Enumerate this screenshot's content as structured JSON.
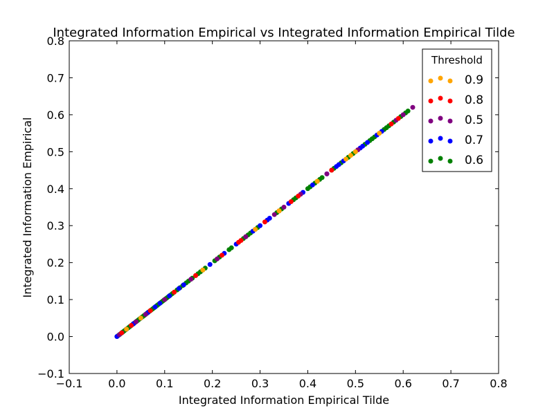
{
  "chart_data": {
    "type": "scatter",
    "title": "Integrated Information Empirical vs Integrated Information Empirical Tilde",
    "xlabel": "Integrated Information Empirical Tilde",
    "ylabel": "Integrated Information Empirical",
    "xlim": [
      -0.1,
      0.8
    ],
    "ylim": [
      -0.1,
      0.8
    ],
    "x_ticks": [
      "−0.1",
      "0.0",
      "0.1",
      "0.2",
      "0.3",
      "0.4",
      "0.5",
      "0.6",
      "0.7",
      "0.8"
    ],
    "y_ticks": [
      "−0.1",
      "0.0",
      "0.1",
      "0.2",
      "0.3",
      "0.4",
      "0.5",
      "0.6",
      "0.7",
      "0.8"
    ],
    "grid": false,
    "legend": {
      "title": "Threshold",
      "placement": "top-right"
    },
    "series": [
      {
        "name": "0.9",
        "color": "#ffa500",
        "points": [
          [
            0.48,
            0.48
          ],
          [
            0.49,
            0.49
          ],
          [
            0.5,
            0.5
          ],
          [
            0.55,
            0.55
          ],
          [
            0.34,
            0.34
          ],
          [
            0.02,
            0.02
          ],
          [
            0.05,
            0.05
          ],
          [
            0.29,
            0.29
          ],
          [
            0.42,
            0.42
          ],
          [
            0.18,
            0.18
          ]
        ]
      },
      {
        "name": "0.8",
        "color": "#ff0000",
        "points": [
          [
            0.59,
            0.59
          ],
          [
            0.575,
            0.575
          ],
          [
            0.38,
            0.38
          ],
          [
            0.22,
            0.22
          ],
          [
            0.26,
            0.26
          ],
          [
            0.34,
            0.34
          ],
          [
            0.12,
            0.12
          ],
          [
            0.31,
            0.31
          ],
          [
            0.45,
            0.45
          ],
          [
            0.07,
            0.07
          ],
          [
            0.03,
            0.03
          ],
          [
            0.01,
            0.01
          ],
          [
            0.165,
            0.165
          ],
          [
            0.255,
            0.255
          ],
          [
            0.365,
            0.365
          ]
        ]
      },
      {
        "name": "0.5",
        "color": "#800080",
        "points": [
          [
            0.62,
            0.62
          ],
          [
            0.6,
            0.6
          ],
          [
            0.585,
            0.585
          ],
          [
            0.35,
            0.35
          ],
          [
            0.385,
            0.385
          ],
          [
            0.21,
            0.21
          ],
          [
            0.155,
            0.155
          ],
          [
            0.1,
            0.1
          ],
          [
            0.06,
            0.06
          ],
          [
            0.04,
            0.04
          ],
          [
            0.02,
            0.02
          ],
          [
            0.005,
            0.005
          ],
          [
            0.44,
            0.44
          ],
          [
            0.27,
            0.27
          ],
          [
            0.505,
            0.505
          ],
          [
            0.33,
            0.33
          ]
        ]
      },
      {
        "name": "0.7",
        "color": "#0000ff",
        "points": [
          [
            0.475,
            0.475
          ],
          [
            0.465,
            0.465
          ],
          [
            0.46,
            0.46
          ],
          [
            0.44,
            0.44
          ],
          [
            0.41,
            0.41
          ],
          [
            0.39,
            0.39
          ],
          [
            0.36,
            0.36
          ],
          [
            0.32,
            0.32
          ],
          [
            0.3,
            0.3
          ],
          [
            0.25,
            0.25
          ],
          [
            0.195,
            0.195
          ],
          [
            0.14,
            0.14
          ],
          [
            0.13,
            0.13
          ],
          [
            0.11,
            0.11
          ],
          [
            0.09,
            0.09
          ],
          [
            0.08,
            0.08
          ],
          [
            0.065,
            0.065
          ],
          [
            0.05,
            0.05
          ],
          [
            0.035,
            0.035
          ],
          [
            0.02,
            0.02
          ],
          [
            0.01,
            0.01
          ],
          [
            0.0,
            0.0
          ],
          [
            0.51,
            0.51
          ],
          [
            0.515,
            0.515
          ],
          [
            0.545,
            0.545
          ],
          [
            0.555,
            0.555
          ],
          [
            0.525,
            0.525
          ],
          [
            0.315,
            0.315
          ],
          [
            0.285,
            0.285
          ],
          [
            0.225,
            0.225
          ],
          [
            0.035,
            0.035
          ]
        ]
      },
      {
        "name": "0.6",
        "color": "#008000",
        "points": [
          [
            0.0,
            0.0
          ],
          [
            0.003,
            0.003
          ],
          [
            0.006,
            0.006
          ],
          [
            0.009,
            0.009
          ],
          [
            0.012,
            0.012
          ],
          [
            0.015,
            0.015
          ],
          [
            0.018,
            0.018
          ],
          [
            0.021,
            0.021
          ],
          [
            0.024,
            0.024
          ],
          [
            0.027,
            0.027
          ],
          [
            0.03,
            0.03
          ],
          [
            0.033,
            0.033
          ],
          [
            0.036,
            0.036
          ],
          [
            0.039,
            0.039
          ],
          [
            0.042,
            0.042
          ],
          [
            0.045,
            0.045
          ],
          [
            0.048,
            0.048
          ],
          [
            0.051,
            0.051
          ],
          [
            0.054,
            0.054
          ],
          [
            0.057,
            0.057
          ],
          [
            0.06,
            0.06
          ],
          [
            0.063,
            0.063
          ],
          [
            0.066,
            0.066
          ],
          [
            0.069,
            0.069
          ],
          [
            0.072,
            0.072
          ],
          [
            0.075,
            0.075
          ],
          [
            0.078,
            0.078
          ],
          [
            0.081,
            0.081
          ],
          [
            0.084,
            0.084
          ],
          [
            0.087,
            0.087
          ],
          [
            0.09,
            0.09
          ],
          [
            0.093,
            0.093
          ],
          [
            0.096,
            0.096
          ],
          [
            0.099,
            0.099
          ],
          [
            0.102,
            0.102
          ],
          [
            0.105,
            0.105
          ],
          [
            0.108,
            0.108
          ],
          [
            0.112,
            0.112
          ],
          [
            0.116,
            0.116
          ],
          [
            0.12,
            0.12
          ],
          [
            0.126,
            0.126
          ],
          [
            0.132,
            0.132
          ],
          [
            0.138,
            0.138
          ],
          [
            0.145,
            0.145
          ],
          [
            0.15,
            0.15
          ],
          [
            0.158,
            0.158
          ],
          [
            0.165,
            0.165
          ],
          [
            0.17,
            0.17
          ],
          [
            0.175,
            0.175
          ],
          [
            0.18,
            0.18
          ],
          [
            0.185,
            0.185
          ],
          [
            0.205,
            0.205
          ],
          [
            0.21,
            0.21
          ],
          [
            0.215,
            0.215
          ],
          [
            0.235,
            0.235
          ],
          [
            0.24,
            0.24
          ],
          [
            0.265,
            0.265
          ],
          [
            0.27,
            0.27
          ],
          [
            0.275,
            0.275
          ],
          [
            0.28,
            0.28
          ],
          [
            0.29,
            0.29
          ],
          [
            0.295,
            0.295
          ],
          [
            0.335,
            0.335
          ],
          [
            0.34,
            0.34
          ],
          [
            0.345,
            0.345
          ],
          [
            0.37,
            0.37
          ],
          [
            0.375,
            0.375
          ],
          [
            0.4,
            0.4
          ],
          [
            0.405,
            0.405
          ],
          [
            0.415,
            0.415
          ],
          [
            0.42,
            0.42
          ],
          [
            0.425,
            0.425
          ],
          [
            0.43,
            0.43
          ],
          [
            0.45,
            0.45
          ],
          [
            0.455,
            0.455
          ],
          [
            0.47,
            0.47
          ],
          [
            0.485,
            0.485
          ],
          [
            0.495,
            0.495
          ],
          [
            0.5,
            0.5
          ],
          [
            0.52,
            0.52
          ],
          [
            0.53,
            0.53
          ],
          [
            0.535,
            0.535
          ],
          [
            0.54,
            0.54
          ],
          [
            0.56,
            0.56
          ],
          [
            0.565,
            0.565
          ],
          [
            0.57,
            0.57
          ],
          [
            0.58,
            0.58
          ],
          [
            0.595,
            0.595
          ],
          [
            0.605,
            0.605
          ],
          [
            0.61,
            0.61
          ]
        ]
      }
    ]
  }
}
